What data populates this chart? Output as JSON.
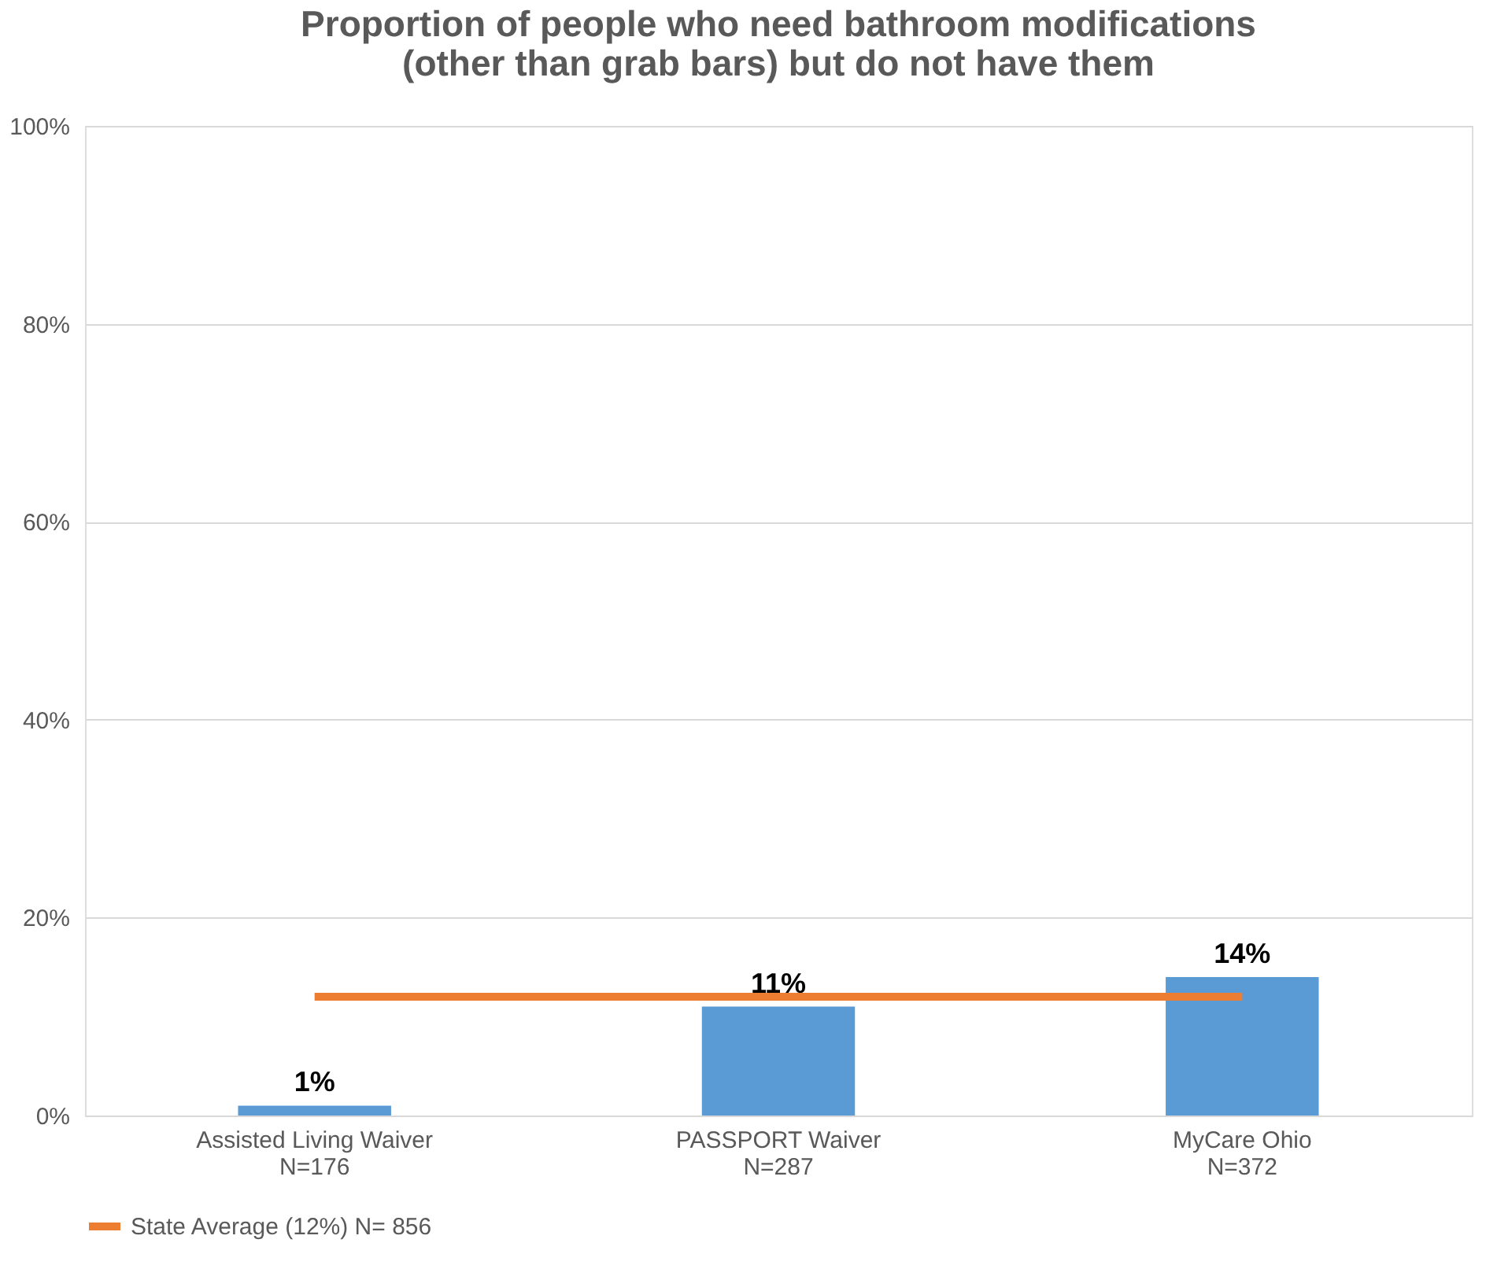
{
  "chart_data": {
    "type": "bar",
    "title": [
      "Proportion of people who need bathroom modifications",
      "(other than grab bars) but do not have them"
    ],
    "categories": [
      "Assisted Living Waiver\nN=176",
      "PASSPORT Waiver\nN=287",
      "MyCare Ohio\nN=372"
    ],
    "series": [
      {
        "color": "#5b9bd5",
        "values": [
          1,
          11,
          14
        ],
        "value_labels": [
          "1%",
          "11%",
          "14%"
        ]
      },
      {
        "type": "line",
        "name": "State Average (12%) N= 856",
        "color": "#ed7d31",
        "values": [
          12,
          12,
          12
        ]
      }
    ],
    "ylim": [
      0,
      100
    ],
    "yticks": [
      {
        "value": 0,
        "label": "0%"
      },
      {
        "value": 20,
        "label": "20%"
      },
      {
        "value": 40,
        "label": "40%"
      },
      {
        "value": 60,
        "label": "60%"
      },
      {
        "value": 80,
        "label": "80%"
      },
      {
        "value": 100,
        "label": "100%"
      }
    ],
    "grid": "y",
    "legend": "bottom"
  }
}
